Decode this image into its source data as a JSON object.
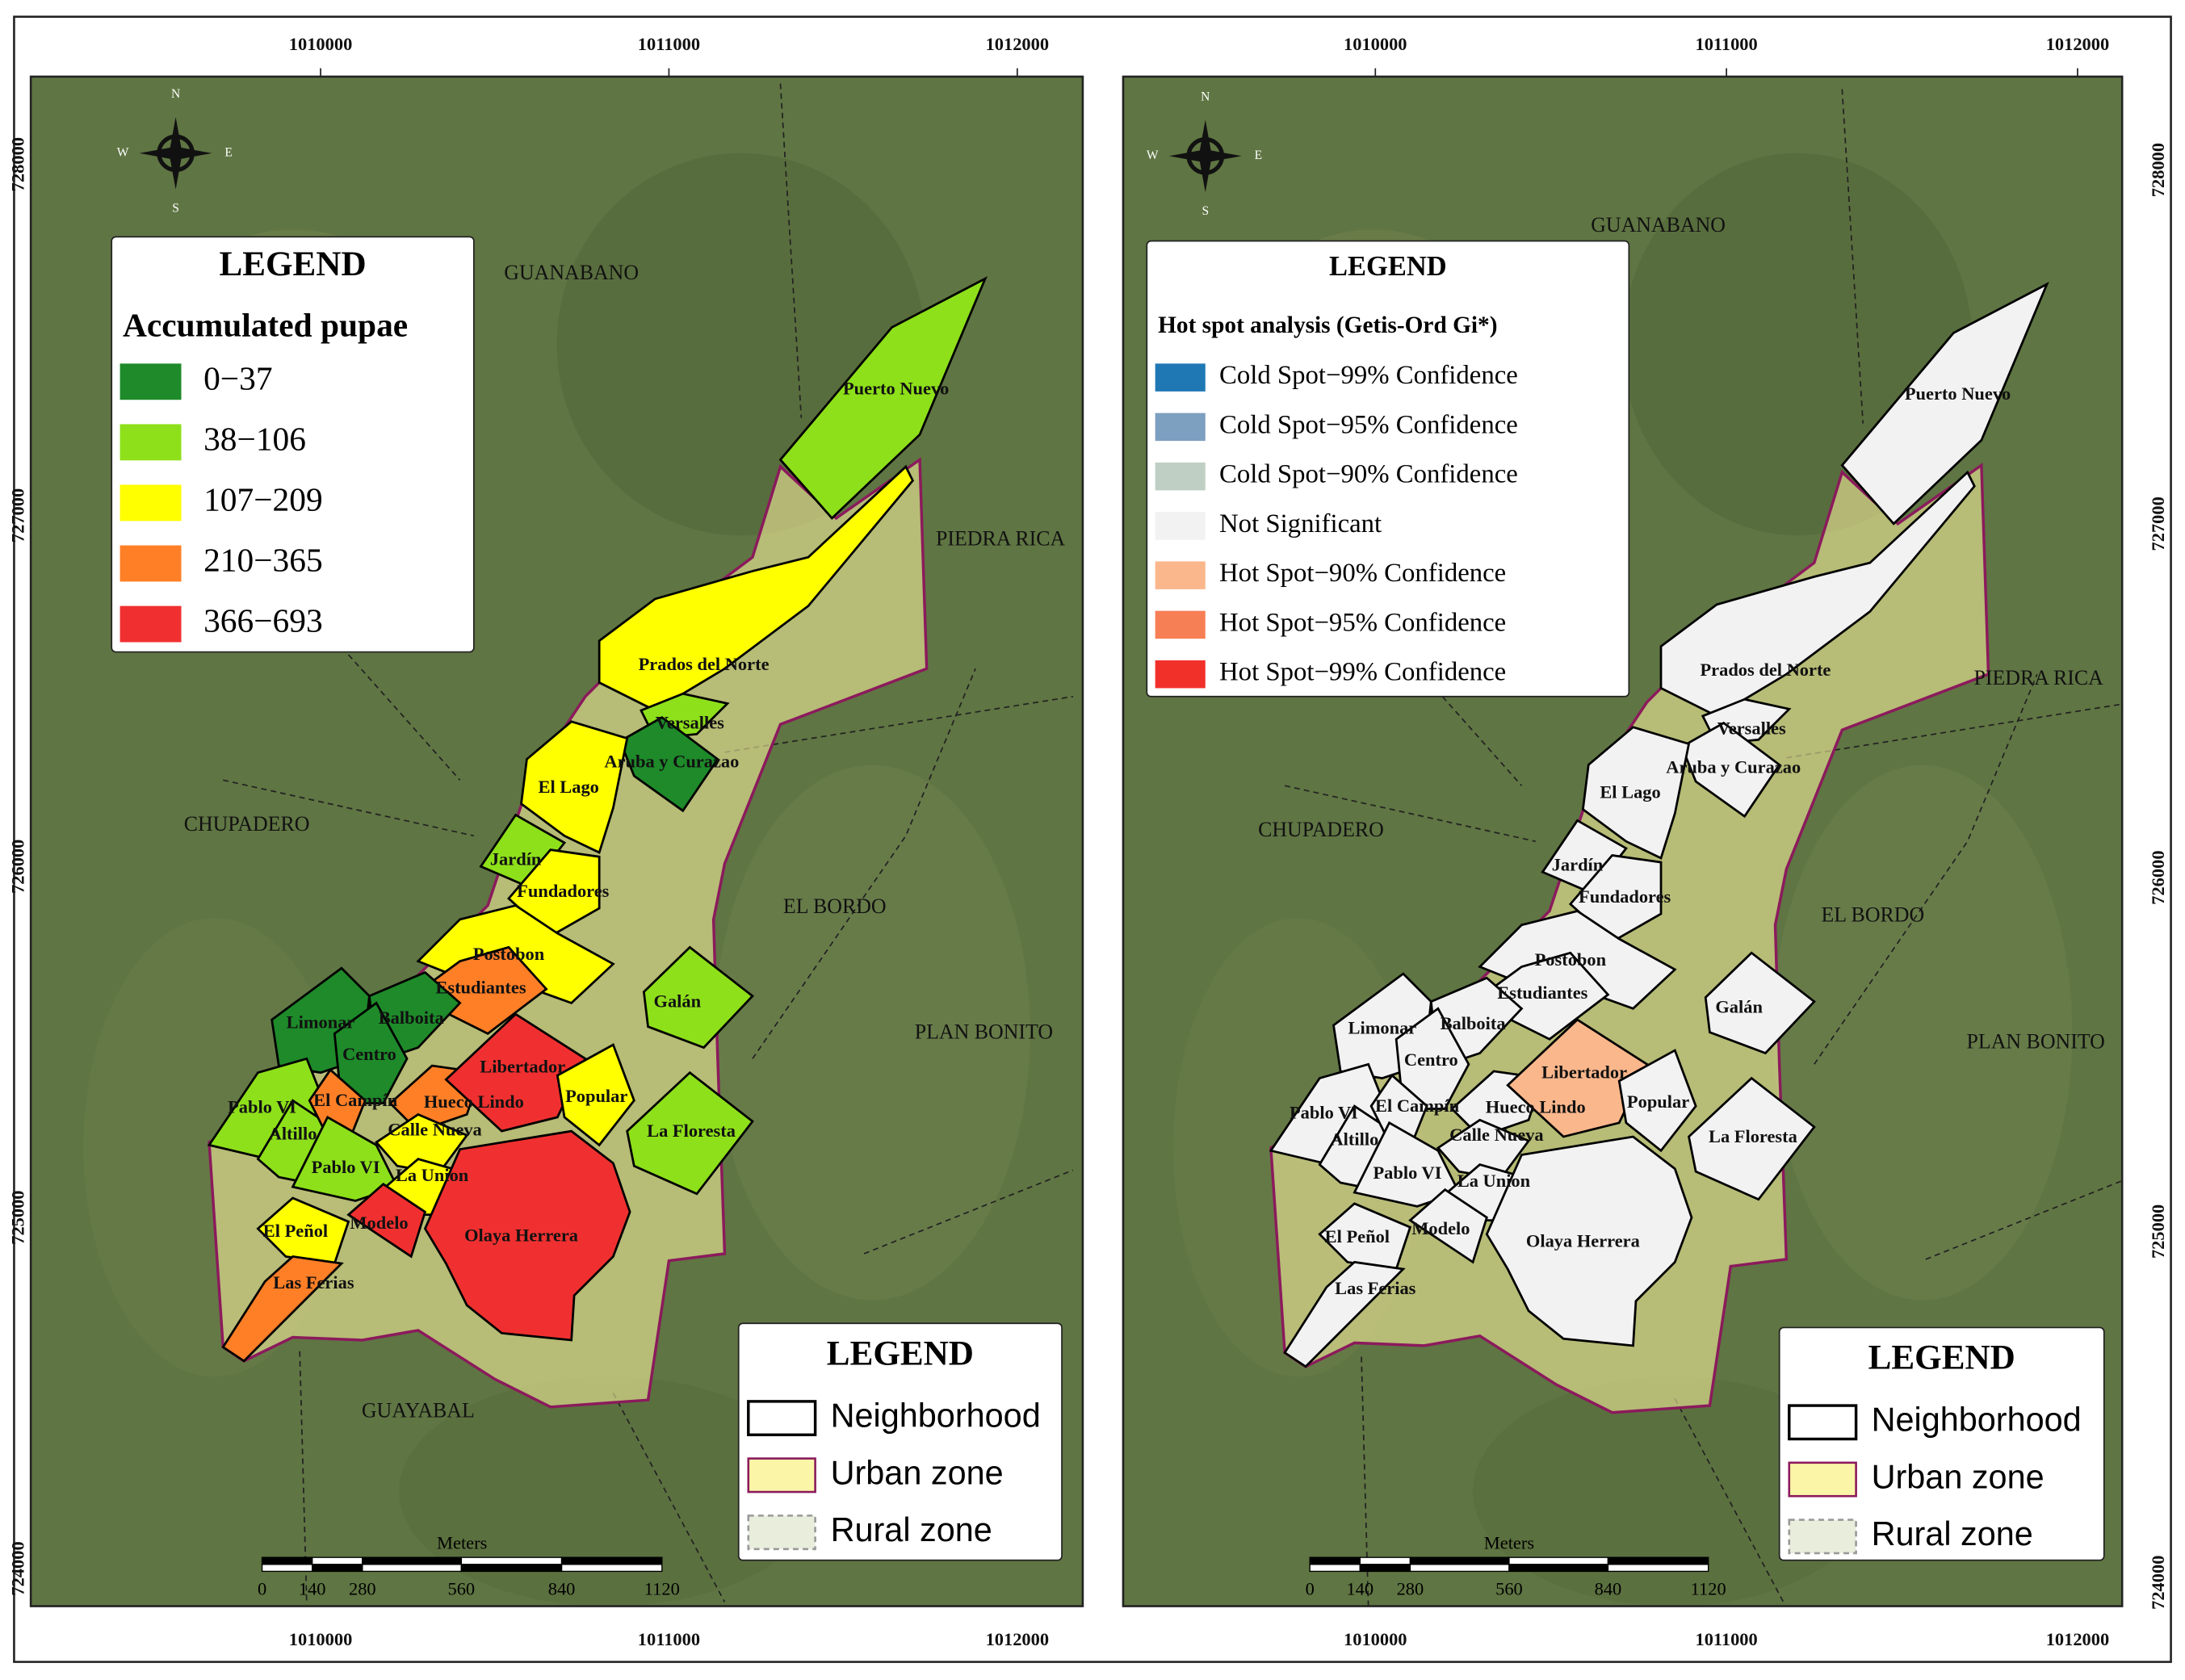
{
  "x_axis_labels": [
    "1010000",
    "1011000",
    "1012000"
  ],
  "y_axis_labels": [
    "728000",
    "727000",
    "726000",
    "725000",
    "724000"
  ],
  "compass": {
    "n": "N",
    "s": "S",
    "w": "W",
    "e": "E"
  },
  "scale_bar": {
    "title": "Meters",
    "labels": [
      "0",
      "140",
      "280",
      "560",
      "840",
      "1120"
    ]
  },
  "neighborhoods": [
    "Puerto Nuevo",
    "Prados del Norte",
    "Versalles",
    "Aruba y Curazao",
    "El Lago",
    "Jardín",
    "Fundadores",
    "Postobon",
    "Estudiantes",
    "Limonar",
    "Balboita",
    "Centro",
    "Pablo VI",
    "Altillo",
    "El Campín",
    "Hueco Lindo",
    "Calle Nueva",
    "Pablo VI",
    "La Union",
    "Libertador",
    "Popular",
    "Galán",
    "La Floresta",
    "Olaya Herrera",
    "Modelo",
    "El Peñol",
    "Las Ferias"
  ],
  "zone_legend": {
    "title": "LEGEND",
    "items": [
      {
        "label": "Neighborhood",
        "color": "#ffffff"
      },
      {
        "label": "Urban zone",
        "color": "#fbf5a8"
      },
      {
        "label": "Rural zone",
        "color": "#e8eddc"
      }
    ]
  },
  "maps": [
    {
      "places": [
        "GUANABANO",
        "PIEDRA RICA",
        "CHUPADERO",
        "EL BORDO",
        "PLAN BONITO",
        "GUAYABAL"
      ],
      "legend": {
        "title": "LEGEND",
        "subtitle": "Accumulated pupae",
        "items": [
          {
            "label": "0−37",
            "color": "#1e8a2a"
          },
          {
            "label": "38−106",
            "color": "#8ee01a"
          },
          {
            "label": "107−209",
            "color": "#ffff00"
          },
          {
            "label": "210−365",
            "color": "#ff7f27"
          },
          {
            "label": "366−693",
            "color": "#f03030"
          }
        ]
      },
      "neighborhood_colors": [
        "#8ee01a",
        "#ffff00",
        "#8ee01a",
        "#1e8a2a",
        "#ffff00",
        "#8ee01a",
        "#ffff00",
        "#ffff00",
        "#ff7f27",
        "#1e8a2a",
        "#1e8a2a",
        "#1e8a2a",
        "#8ee01a",
        "#8ee01a",
        "#ff7f27",
        "#ff7f27",
        "#ffff00",
        "#8ee01a",
        "#ffff00",
        "#f03030",
        "#ffff00",
        "#8ee01a",
        "#8ee01a",
        "#f03030",
        "#f03030",
        "#ffff00",
        "#ff7f27"
      ]
    },
    {
      "places": [
        "GUANABANO",
        "PIEDRA RICA",
        "CHUPADERO",
        "EL BORDO",
        "PLAN BONITO"
      ],
      "legend": {
        "title": "LEGEND",
        "subtitle": "Hot spot analysis (Getis-Ord Gi*)",
        "items": [
          {
            "label": "Cold Spot−99% Confidence",
            "color": "#1f78b4"
          },
          {
            "label": "Cold Spot−95% Confidence",
            "color": "#7d9fc0"
          },
          {
            "label": "Cold Spot−90% Confidence",
            "color": "#bfcfc3"
          },
          {
            "label": "Not Significant",
            "color": "#f2f2f2"
          },
          {
            "label": "Hot Spot−90% Confidence",
            "color": "#fbb78c"
          },
          {
            "label": "Hot Spot−95% Confidence",
            "color": "#f77f55"
          },
          {
            "label": "Hot Spot−99% Confidence",
            "color": "#f2302a"
          }
        ]
      },
      "neighborhood_colors": [
        "#f2f2f2",
        "#f2f2f2",
        "#f2f2f2",
        "#f2f2f2",
        "#f2f2f2",
        "#f2f2f2",
        "#f2f2f2",
        "#f2f2f2",
        "#f2f2f2",
        "#f2f2f2",
        "#f2f2f2",
        "#f2f2f2",
        "#f2f2f2",
        "#f2f2f2",
        "#f2f2f2",
        "#f2f2f2",
        "#f2f2f2",
        "#f2f2f2",
        "#f2f2f2",
        "#fbb78c",
        "#f2f2f2",
        "#f2f2f2",
        "#f2f2f2",
        "#f2f2f2",
        "#f2f2f2",
        "#f2f2f2",
        "#f2f2f2"
      ]
    }
  ]
}
